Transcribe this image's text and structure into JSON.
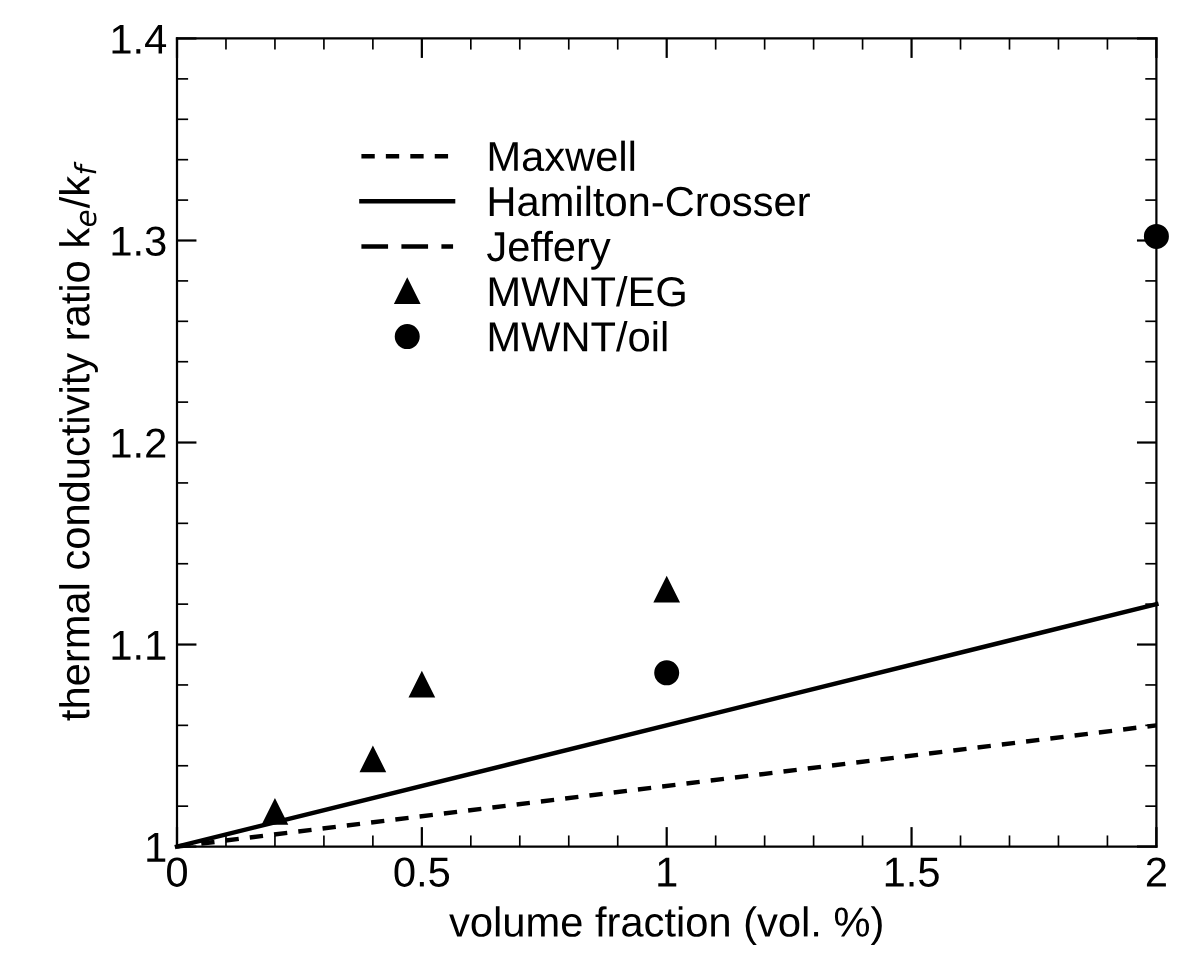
{
  "chart_data": {
    "type": "line",
    "xlabel": "volume fraction (vol. %)",
    "ylabel": "thermal conductivity ratio k$_{e}$/k$_{f}$",
    "xlim": [
      0,
      2
    ],
    "xticks": [
      0,
      0.5,
      1,
      1.5,
      2
    ],
    "ylim": [
      1,
      1.4
    ],
    "yticks": [
      1,
      1.1,
      1.2,
      1.3,
      1.4
    ],
    "grid": false,
    "legend": "top left",
    "series": [
      {
        "name": "Maxwell",
        "line_style": "dotted",
        "color": "#000000",
        "x": [
          0,
          2
        ],
        "values": [
          1,
          1.06
        ]
      },
      {
        "name": "Hamilton-Crosser",
        "line_style": "solid",
        "color": "#000000",
        "x": [
          0,
          2
        ],
        "values": [
          1,
          1.12
        ]
      },
      {
        "name": "Jeffery",
        "line_style": "dashed",
        "color": "#000000"
      },
      {
        "name": "MWNT/EG",
        "type": "scatter",
        "marker": "triangle",
        "color": "#000000",
        "x": [
          0.2,
          0.4,
          0.5,
          1
        ],
        "values": [
          1.017,
          1.043,
          1.08,
          1.127
        ]
      },
      {
        "name": "MWNT/oil",
        "type": "scatter",
        "marker": "circle",
        "color": "#000000",
        "x": [
          1,
          2
        ],
        "values": [
          1.086,
          1.302
        ]
      }
    ]
  }
}
